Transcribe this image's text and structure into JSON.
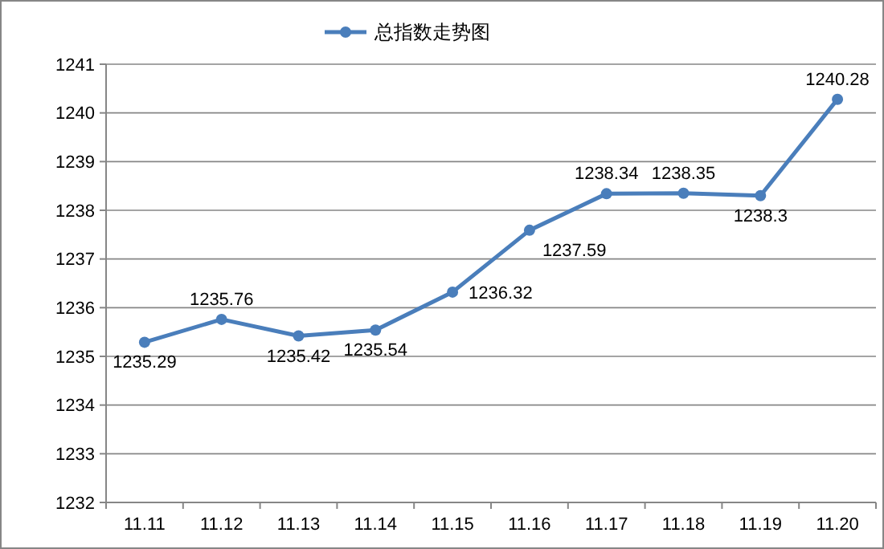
{
  "chart_data": {
    "type": "line",
    "categories": [
      "11.11",
      "11.12",
      "11.13",
      "11.14",
      "11.15",
      "11.16",
      "11.17",
      "11.18",
      "11.19",
      "11.20"
    ],
    "series": [
      {
        "name": "总指数走势图",
        "color": "#4a7ebb",
        "values": [
          1235.29,
          1235.76,
          1235.42,
          1235.54,
          1236.32,
          1237.59,
          1238.34,
          1238.35,
          1238.3,
          1240.28
        ]
      }
    ],
    "ylim": [
      1232,
      1241
    ],
    "yticks": [
      1232,
      1233,
      1234,
      1235,
      1236,
      1237,
      1238,
      1239,
      1240,
      1241
    ],
    "grid": "y",
    "legend": "top",
    "marker": "circle",
    "data_labels": true
  }
}
